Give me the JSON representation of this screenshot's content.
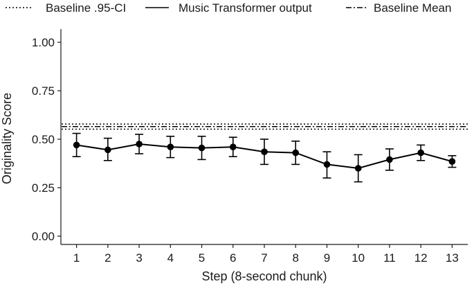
{
  "chart_data": {
    "type": "line",
    "xlabel": "Step (8-second chunk)",
    "ylabel": "Originality Score",
    "x": [
      1,
      2,
      3,
      4,
      5,
      6,
      7,
      8,
      9,
      10,
      11,
      12,
      13
    ],
    "xlim": [
      0.5,
      13.5
    ],
    "ylim": [
      0,
      1
    ],
    "y_ticks": [
      0.0,
      0.25,
      0.5,
      0.75,
      1.0
    ],
    "y_tick_labels": [
      "0.00",
      "0.25",
      "0.50",
      "0.75",
      "1.00"
    ],
    "x_tick_labels": [
      "1",
      "2",
      "3",
      "4",
      "5",
      "6",
      "7",
      "8",
      "9",
      "10",
      "11",
      "12",
      "13"
    ],
    "grid": false,
    "legend_position": "top",
    "series": [
      {
        "name": "Music Transformer output",
        "style": "solid",
        "color": "#000000",
        "values": [
          0.47,
          0.445,
          0.475,
          0.46,
          0.455,
          0.46,
          0.435,
          0.43,
          0.37,
          0.35,
          0.395,
          0.43,
          0.385
        ],
        "ci_low": [
          0.41,
          0.39,
          0.425,
          0.405,
          0.395,
          0.41,
          0.37,
          0.37,
          0.3,
          0.28,
          0.34,
          0.39,
          0.355
        ],
        "ci_high": [
          0.53,
          0.505,
          0.525,
          0.515,
          0.515,
          0.51,
          0.5,
          0.49,
          0.435,
          0.42,
          0.45,
          0.47,
          0.415
        ]
      }
    ],
    "reference_lines": [
      {
        "name": "Baseline .95-CI",
        "style": "dotted",
        "y": 0.578
      },
      {
        "name": "Baseline .95-CI",
        "style": "dotted",
        "y": 0.552
      },
      {
        "name": "Baseline Mean",
        "style": "dashdot",
        "y": 0.565
      }
    ],
    "legend": [
      {
        "label": "Baseline .95-CI",
        "style": "dotted"
      },
      {
        "label": "Music Transformer output",
        "style": "solid"
      },
      {
        "label": "Baseline Mean",
        "style": "dashdot"
      }
    ]
  }
}
